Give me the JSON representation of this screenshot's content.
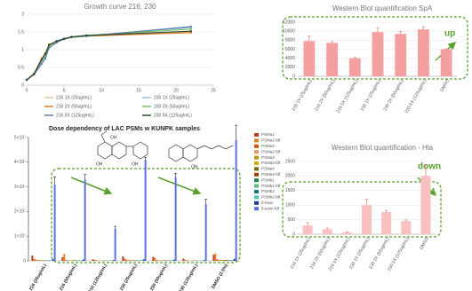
{
  "chart_data": [
    {
      "type": "line",
      "title": "Growth curve  216, 230",
      "x": [
        0,
        1,
        2,
        2.5,
        3,
        4,
        5,
        6,
        8,
        22
      ],
      "xlim": [
        0,
        25
      ],
      "xticks": [
        0,
        5,
        10,
        15,
        20,
        25
      ],
      "ylim": [
        0,
        2
      ],
      "yticks": [
        0,
        0.5,
        1,
        1.5,
        2
      ],
      "grid": true,
      "series": [
        {
          "name": "216 1X (25ug/mL)",
          "color": "#d9c8a0",
          "values": [
            0.15,
            0.32,
            0.7,
            0.85,
            1.12,
            1.22,
            1.3,
            1.35,
            1.4,
            1.5
          ]
        },
        {
          "name": "230 1X (25ug/mL)",
          "color": "#9cc3e6",
          "values": [
            0.15,
            0.3,
            0.68,
            0.8,
            1.1,
            1.25,
            1.32,
            1.36,
            1.4,
            1.62
          ]
        },
        {
          "name": "216 2X (50ug/mL)",
          "color": "#e07b2a",
          "values": [
            0.15,
            0.33,
            0.75,
            0.9,
            1.15,
            1.23,
            1.3,
            1.35,
            1.38,
            1.48
          ]
        },
        {
          "name": "230 2X (50ug/mL)",
          "color": "#7fbf5f",
          "values": [
            0.15,
            0.31,
            0.7,
            0.85,
            1.12,
            1.22,
            1.31,
            1.36,
            1.4,
            1.58
          ]
        },
        {
          "name": "216 5X (125ug/mL)",
          "color": "#5b7fa6",
          "values": [
            0.15,
            0.3,
            0.6,
            0.75,
            1.05,
            1.2,
            1.3,
            1.35,
            1.38,
            1.65
          ]
        },
        {
          "name": "230 5X (125ug/mL)",
          "color": "#2f4f2f",
          "values": [
            0.15,
            0.32,
            0.72,
            0.88,
            1.13,
            1.24,
            1.3,
            1.36,
            1.4,
            1.52
          ]
        }
      ]
    },
    {
      "type": "bar",
      "title": "Western Blot quantification   SpA",
      "annotation": "up",
      "color": "#f4a0a0",
      "grid": true,
      "categories": [
        "216 1X (25ug/mL)",
        "216 2X (50ug/mL)",
        "216 5X (125ug/mL)",
        "230 1X (25ug/mL)",
        "230 2X (50ug/mL)",
        "230 5X (125ug/mL)",
        "DMSO"
      ],
      "values": [
        7800,
        7400,
        4000,
        9800,
        9400,
        10400,
        6000
      ],
      "errors": [
        1200,
        300,
        200,
        900,
        500,
        600,
        100
      ],
      "ylim": [
        0,
        12000
      ],
      "yticks": [
        0,
        2000,
        4000,
        6000,
        8000,
        10000,
        12000
      ]
    },
    {
      "type": "bar",
      "title": "Dose dependency of LAC PSMs w KUNPK samples",
      "structure_labels": [
        "OH",
        "OH",
        "OH",
        "OH"
      ],
      "grid": false,
      "categories": [
        "216 (25ug/mL)",
        "216 (50ug/mL)",
        "216 (125ug/mL)",
        "230 (25ug/mL)",
        "230 (50ug/mL)",
        "230 (125ug/mL)",
        "DMSO (2.5%)"
      ],
      "ylim": [
        0,
        50000000
      ],
      "yticks": [
        0,
        {
          "value": 10000000,
          "label": "1×10⁷"
        },
        {
          "value": 20000000,
          "label": "2×10⁷"
        },
        {
          "value": 30000000,
          "label": "3×10⁷"
        },
        {
          "value": 40000000,
          "label": "4×10⁷"
        },
        {
          "value": 50000000,
          "label": "5×10⁷"
        }
      ],
      "series": [
        {
          "name": "PSMa1",
          "color": "#c0392b",
          "values": [
            2200000.0,
            1500000.0,
            600000.0,
            1800000.0,
            1600000.0,
            900000.0,
            2500000.0
          ]
        },
        {
          "name": "PSMa1-fdf",
          "color": "#e67e22",
          "values": [
            800000.0,
            2800000.0,
            500000.0,
            1000000.0,
            1200000.0,
            400000.0,
            3000000.0
          ]
        },
        {
          "name": "PSMa2",
          "color": "#d35400",
          "values": [
            400000.0,
            300000.0,
            200000.0,
            400000.0,
            300000.0,
            200000.0,
            600000.0
          ]
        },
        {
          "name": "PSMa2-fdf",
          "color": "#e59866",
          "values": [
            300000.0,
            300000.0,
            200000.0,
            300000.0,
            300000.0,
            200000.0,
            500000.0
          ]
        },
        {
          "name": "PSMa3",
          "color": "#b7950b",
          "values": [
            300000.0,
            200000.0,
            100000.0,
            300000.0,
            200000.0,
            100000.0,
            400000.0
          ]
        },
        {
          "name": "PSMa3-fdf",
          "color": "#d4ac0d",
          "values": [
            300000.0,
            200000.0,
            100000.0,
            300000.0,
            200000.0,
            100000.0,
            400000.0
          ]
        },
        {
          "name": "PSMa4",
          "color": "#7d6608",
          "values": [
            200000.0,
            200000.0,
            100000.0,
            200000.0,
            200000.0,
            100000.0,
            300000.0
          ]
        },
        {
          "name": "PSMa4-fdf",
          "color": "#a04000",
          "values": [
            200000.0,
            200000.0,
            100000.0,
            200000.0,
            200000.0,
            100000.0,
            300000.0
          ]
        },
        {
          "name": "PSMb1",
          "color": "#1e8449",
          "values": [
            200000.0,
            200000.0,
            100000.0,
            200000.0,
            200000.0,
            100000.0,
            300000.0
          ]
        },
        {
          "name": "PSMb1-fdf",
          "color": "#52be80",
          "values": [
            200000.0,
            200000.0,
            100000.0,
            200000.0,
            200000.0,
            100000.0,
            300000.0
          ]
        },
        {
          "name": "PSMb2",
          "color": "#117a65",
          "values": [
            200000.0,
            200000.0,
            100000.0,
            200000.0,
            200000.0,
            100000.0,
            300000.0
          ]
        },
        {
          "name": "PSMb2-fdf",
          "color": "#48c9b0",
          "values": [
            200000.0,
            200000.0,
            100000.0,
            200000.0,
            200000.0,
            100000.0,
            300000.0
          ]
        },
        {
          "name": "δ-toxin",
          "color": "#1f3a93",
          "values": [
            600000.0,
            500000.0,
            300000.0,
            600000.0,
            500000.0,
            300000.0,
            800000.0
          ]
        },
        {
          "name": "δ-toxin-fdf",
          "color": "#5b6ee1",
          "values": [
            31000000.0,
            33000000.0,
            13000000.0,
            41000000.0,
            34000000.0,
            23000000.0,
            49000000.0
          ],
          "errors": [
            3000000.0,
            2000000.0,
            1000000.0,
            1000000.0,
            1500000.0,
            2000000.0,
            6000000.0
          ]
        }
      ]
    },
    {
      "type": "bar",
      "title": "Western Blot quantification - Hla",
      "annotation": "down",
      "color": "#f9c0c0",
      "grid": true,
      "categories": [
        "216 1X (25ug/mL)",
        "216 2X (50ug/mL)",
        "216 5X (125ug/mL)",
        "230 1X (25ug/mL)",
        "230 2X (50ug/mL)",
        "230 5X (125ug/mL)",
        "DMSO"
      ],
      "values": [
        300,
        170,
        60,
        1000,
        760,
        450,
        2000
      ],
      "errors": [
        100,
        40,
        20,
        200,
        60,
        40,
        400
      ],
      "ylim": [
        0,
        2500
      ],
      "yticks": [
        0,
        500,
        1000,
        1500,
        2000,
        2500
      ]
    }
  ]
}
